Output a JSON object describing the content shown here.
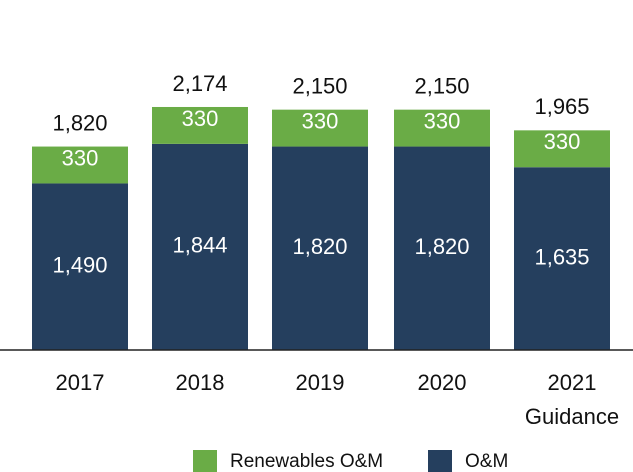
{
  "chart_data": {
    "type": "stacked_bar",
    "categories": [
      "2017",
      "2018",
      "2019",
      "2020",
      "2021\nGuidance"
    ],
    "series": [
      {
        "name": "O&M",
        "color": "#253f5e",
        "values": [
          1490,
          1844,
          1820,
          1820,
          1635
        ],
        "value_labels": [
          "1,490",
          "1,844",
          "1,820",
          "1,820",
          "1,635"
        ]
      },
      {
        "name": "Renewables O&M",
        "color": "#6aac46",
        "values": [
          330,
          330,
          330,
          330,
          330
        ]
      }
    ],
    "totals": [
      1820,
      2174,
      2150,
      2150,
      1965
    ],
    "total_labels": [
      "1,820",
      "2,174",
      "2,150",
      "2,150",
      "1,965"
    ],
    "ylim": [
      0,
      2800
    ]
  }
}
